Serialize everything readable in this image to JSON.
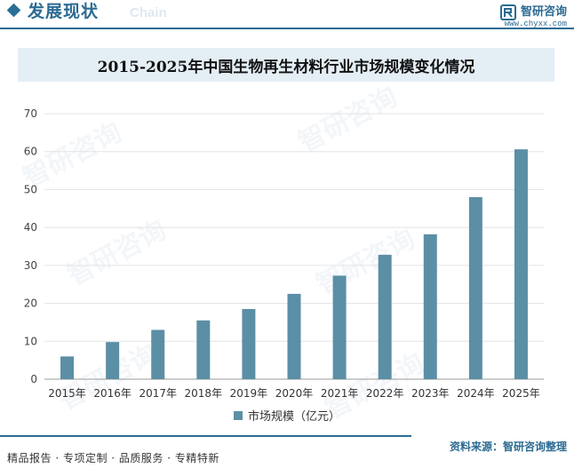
{
  "header": {
    "section_title": "发展现状",
    "section_subtitle": "Chain",
    "brand_name": "智研咨询",
    "brand_url": "www.chyxx.com"
  },
  "watermark_text": "智研咨询",
  "source_text": "资料来源：智研咨询整理",
  "footer_text": "精品报告 · 专项定制 · 品质服务 · 专精特新",
  "colors": {
    "bar": "#5b8fa6",
    "accent": "#2c6b92",
    "title_band": "#e4eef5"
  },
  "chart_data": {
    "type": "bar",
    "title": "2015-2025年中国生物再生材料行业市场规模变化情况",
    "categories": [
      "2015年",
      "2016年",
      "2017年",
      "2018年",
      "2019年",
      "2020年",
      "2021年",
      "2022年",
      "2023年",
      "2024年",
      "2025年"
    ],
    "series": [
      {
        "name": "市场规模（亿元）",
        "values": [
          6,
          9.8,
          13,
          15.5,
          18.5,
          22.5,
          27.3,
          32.8,
          38.2,
          48,
          60.6
        ]
      }
    ],
    "yticks": [
      0,
      10,
      20,
      30,
      40,
      50,
      60,
      70
    ],
    "ylim": [
      0,
      70
    ],
    "xlabel": "",
    "ylabel": "",
    "legend_position": "bottom-center",
    "grid": true
  }
}
